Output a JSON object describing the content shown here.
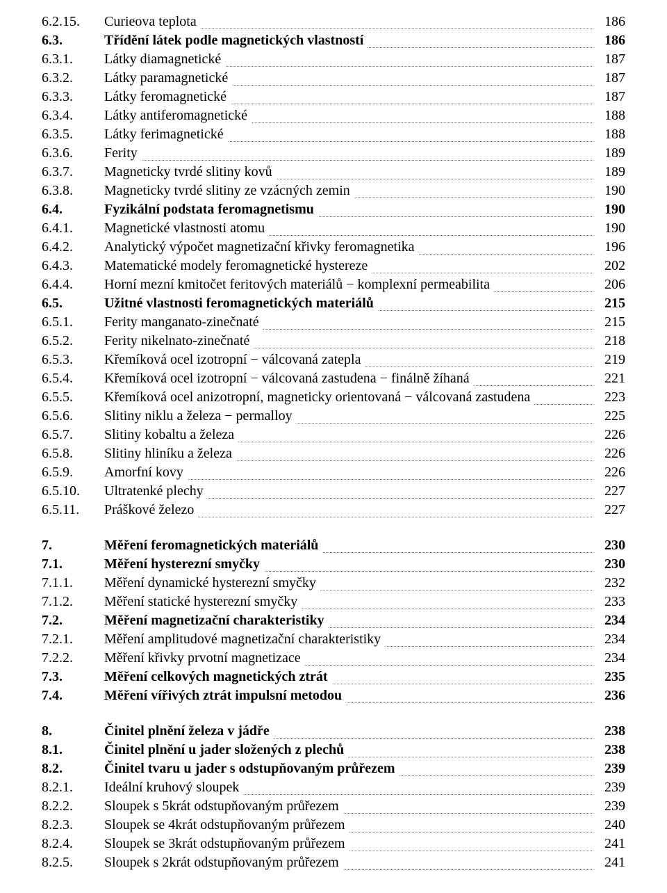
{
  "toc": [
    {
      "num": "6.2.15.",
      "title": "Curieova teplota",
      "page": "186",
      "bold": false
    },
    {
      "num": "6.3.",
      "title": "Třídění látek podle magnetických vlastností",
      "page": "186",
      "bold": true
    },
    {
      "num": "6.3.1.",
      "title": "Látky diamagnetické",
      "page": "187",
      "bold": false
    },
    {
      "num": "6.3.2.",
      "title": "Látky paramagnetické",
      "page": "187",
      "bold": false
    },
    {
      "num": "6.3.3.",
      "title": "Látky feromagnetické",
      "page": "187",
      "bold": false
    },
    {
      "num": "6.3.4.",
      "title": "Látky antiferomagnetické",
      "page": "188",
      "bold": false
    },
    {
      "num": "6.3.5.",
      "title": "Látky ferimagnetické",
      "page": "188",
      "bold": false
    },
    {
      "num": "6.3.6.",
      "title": "Ferity",
      "page": "189",
      "bold": false
    },
    {
      "num": "6.3.7.",
      "title": "Magneticky tvrdé slitiny kovů",
      "page": "189",
      "bold": false
    },
    {
      "num": "6.3.8.",
      "title": "Magneticky tvrdé slitiny ze vzácných zemin",
      "page": "190",
      "bold": false
    },
    {
      "num": "6.4.",
      "title": "Fyzikální podstata feromagnetismu",
      "page": "190",
      "bold": true
    },
    {
      "num": "6.4.1.",
      "title": "Magnetické vlastnosti atomu",
      "page": "190",
      "bold": false
    },
    {
      "num": "6.4.2.",
      "title": "Analytický výpočet magnetizační křivky feromagnetika",
      "page": "196",
      "bold": false
    },
    {
      "num": "6.4.3.",
      "title": "Matematické modely feromagnetické hystereze",
      "page": "202",
      "bold": false
    },
    {
      "num": "6.4.4.",
      "title": "Horní mezní kmitočet feritových materiálů − komplexní permeabilita",
      "page": "206",
      "bold": false
    },
    {
      "num": "6.5.",
      "title": "Užitné vlastnosti feromagnetických materiálů",
      "page": "215",
      "bold": true
    },
    {
      "num": "6.5.1.",
      "title": "Ferity manganato-zinečnaté",
      "page": "215",
      "bold": false
    },
    {
      "num": "6.5.2.",
      "title": "Ferity nikelnato-zinečnaté",
      "page": "218",
      "bold": false
    },
    {
      "num": "6.5.3.",
      "title": "Křemíková ocel izotropní − válcovaná zatepla",
      "page": "219",
      "bold": false
    },
    {
      "num": "6.5.4.",
      "title": "Křemíková ocel izotropní − válcovaná zastudena − finálně žíhaná",
      "page": "221",
      "bold": false
    },
    {
      "num": "6.5.5.",
      "title": "Křemíková ocel anizotropní, magneticky orientovaná − válcovaná zastudena",
      "page": "223",
      "bold": false
    },
    {
      "num": "6.5.6.",
      "title": "Slitiny niklu a železa − permalloy",
      "page": "225",
      "bold": false
    },
    {
      "num": "6.5.7.",
      "title": "Slitiny kobaltu a železa",
      "page": "226",
      "bold": false
    },
    {
      "num": "6.5.8.",
      "title": "Slitiny hliníku a železa",
      "page": "226",
      "bold": false
    },
    {
      "num": "6.5.9.",
      "title": "Amorfní kovy",
      "page": "226",
      "bold": false
    },
    {
      "num": "6.5.10.",
      "title": "Ultratenké plechy",
      "page": "227",
      "bold": false
    },
    {
      "num": "6.5.11.",
      "title": "Práškové železo",
      "page": "227",
      "bold": false
    },
    {
      "gap": true
    },
    {
      "num": "7.",
      "title": "Měření feromagnetických materiálů",
      "page": "230",
      "bold": true
    },
    {
      "num": "7.1.",
      "title": "Měření hysterezní smyčky",
      "page": "230",
      "bold": true
    },
    {
      "num": "7.1.1.",
      "title": "Měření dynamické hysterezní smyčky",
      "page": "232",
      "bold": false
    },
    {
      "num": "7.1.2.",
      "title": "Měření statické hysterezní smyčky",
      "page": "233",
      "bold": false
    },
    {
      "num": "7.2.",
      "title": "Měření magnetizační charakteristiky",
      "page": "234",
      "bold": true
    },
    {
      "num": "7.2.1.",
      "title": "Měření amplitudové magnetizační charakteristiky",
      "page": "234",
      "bold": false
    },
    {
      "num": "7.2.2.",
      "title": "Měření křivky prvotní magnetizace",
      "page": "234",
      "bold": false
    },
    {
      "num": "7.3.",
      "title": "Měření celkových magnetických ztrát",
      "page": "235",
      "bold": true
    },
    {
      "num": "7.4.",
      "title": "Měření vířivých ztrát impulsní metodou",
      "page": "236",
      "bold": true
    },
    {
      "gap": true
    },
    {
      "num": "8.",
      "title": "Činitel plnění železa v jádře",
      "page": "238",
      "bold": true
    },
    {
      "num": "8.1.",
      "title": "Činitel plnění u jader složených z plechů",
      "page": "238",
      "bold": true
    },
    {
      "num": "8.2.",
      "title": "Činitel tvaru u jader s odstupňovaným průřezem",
      "page": "239",
      "bold": true
    },
    {
      "num": "8.2.1.",
      "title": "Ideální kruhový sloupek",
      "page": "239",
      "bold": false
    },
    {
      "num": "8.2.2.",
      "title": "Sloupek s 5krát odstupňovaným průřezem",
      "page": "239",
      "bold": false
    },
    {
      "num": "8.2.3.",
      "title": "Sloupek se 4krát odstupňovaným průřezem",
      "page": "240",
      "bold": false
    },
    {
      "num": "8.2.4.",
      "title": "Sloupek se 3krát odstupňovaným průřezem",
      "page": "241",
      "bold": false
    },
    {
      "num": "8.2.5.",
      "title": "Sloupek s 2krát odstupňovaným průřezem",
      "page": "241",
      "bold": false
    }
  ]
}
